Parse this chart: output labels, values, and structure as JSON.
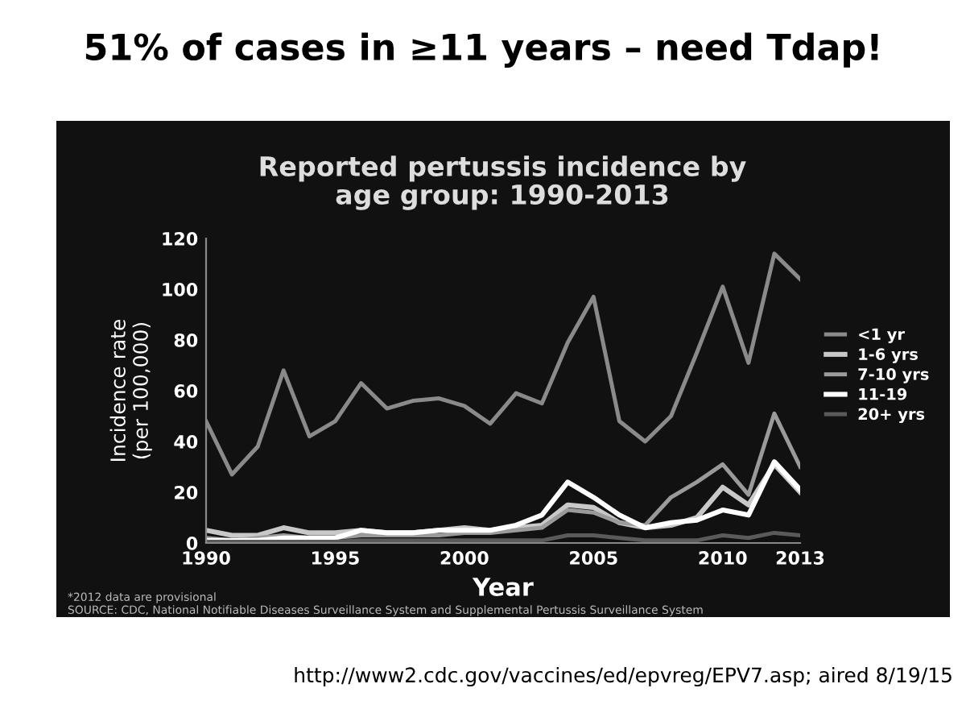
{
  "chart_data": {
    "type": "line",
    "title": "51% of cases in ≥11 years – need Tdap!",
    "subtitle": "Reported pertussis incidence by\nage group: 1990-2013",
    "xlabel": "Year",
    "ylabel": "Incidence rate\n(per 100,000)",
    "x": [
      1990,
      1991,
      1992,
      1993,
      1994,
      1995,
      1996,
      1997,
      1998,
      1999,
      2000,
      2001,
      2002,
      2003,
      2004,
      2005,
      2006,
      2007,
      2008,
      2009,
      2010,
      2011,
      2012,
      2013
    ],
    "series": [
      {
        "name": "<1 yr",
        "color": "#8a8a8a",
        "values": [
          48,
          27,
          38,
          68,
          42,
          48,
          63,
          53,
          56,
          57,
          54,
          47,
          59,
          55,
          79,
          97,
          48,
          40,
          50,
          75,
          101,
          71,
          114,
          104
        ]
      },
      {
        "name": "1-6 yrs",
        "color": "#c8c8c8",
        "values": [
          5,
          3,
          3,
          6,
          4,
          4,
          5,
          4,
          4,
          5,
          6,
          5,
          6,
          7,
          15,
          14,
          8,
          6,
          7,
          10,
          22,
          15,
          31,
          20
        ]
      },
      {
        "name": "7-10 yrs",
        "color": "#9a9a9a",
        "values": [
          2,
          1,
          2,
          3,
          2,
          2,
          3,
          3,
          3,
          3,
          4,
          4,
          5,
          6,
          13,
          12,
          8,
          7,
          18,
          24,
          31,
          19,
          51,
          30
        ]
      },
      {
        "name": "11-19",
        "color": "#ffffff",
        "values": [
          1,
          1,
          1,
          2,
          2,
          2,
          5,
          4,
          4,
          5,
          5,
          5,
          7,
          11,
          24,
          18,
          11,
          6,
          8,
          9,
          13,
          11,
          32,
          21
        ]
      },
      {
        "name": "20+ yrs",
        "color": "#5a5a5a",
        "values": [
          0.5,
          0.5,
          0.5,
          0.5,
          0.5,
          0.5,
          1,
          1,
          1,
          1,
          1,
          1,
          1,
          1,
          3,
          3,
          2,
          1,
          1,
          1,
          3,
          2,
          4,
          3
        ]
      }
    ],
    "xlim": [
      1990,
      2013
    ],
    "xticks": [
      1990,
      1995,
      2000,
      2005,
      2010,
      2013
    ],
    "ylim": [
      0,
      120
    ],
    "yticks": [
      0,
      20,
      40,
      60,
      80,
      100,
      120
    ],
    "grid": false,
    "legend": "right",
    "marker": "none",
    "line_style": "solid",
    "annotations": [
      "*2012 data are provisional",
      "SOURCE: CDC, National Notifiable Diseases Surveillance System and Supplemental Pertussis Surveillance System",
      "http://www2.cdc.gov/vaccines/ed/epvreg/EPV7.asp; aired 8/19/15"
    ]
  }
}
